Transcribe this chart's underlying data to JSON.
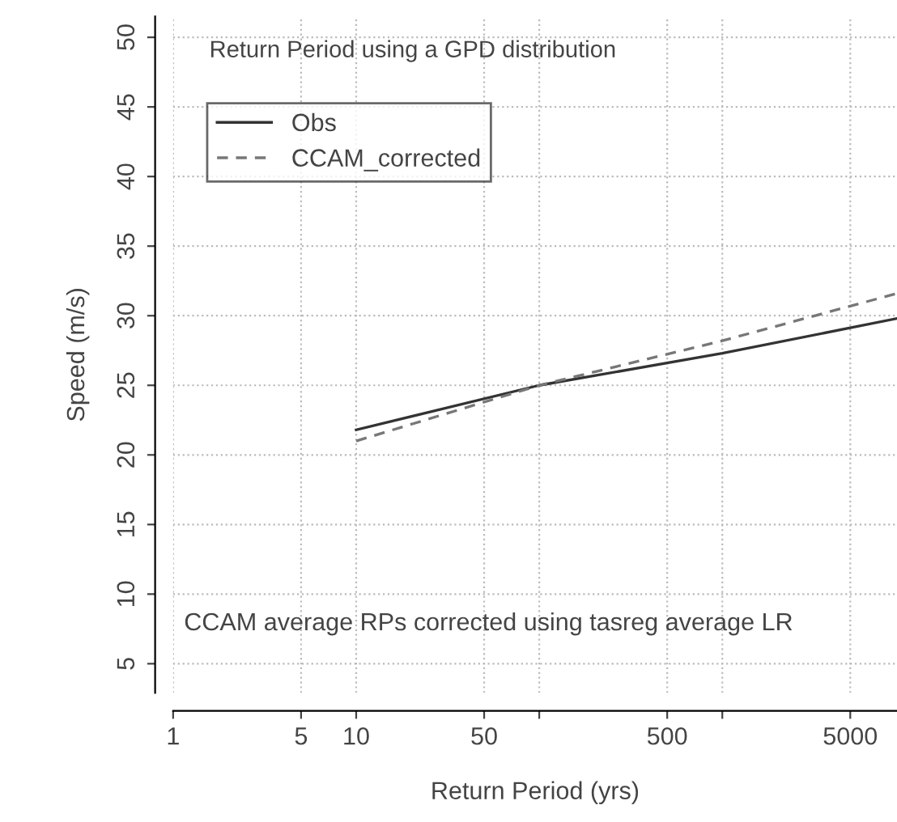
{
  "chart_data": {
    "type": "line",
    "xlabel": "Return Period (yrs)",
    "ylabel": "Speed (m/s)",
    "annotations": [
      "Return Period using a GPD distribution",
      "CCAM average RPs corrected using tasreg average LR"
    ],
    "log": "x",
    "xlim": [
      1,
      9000
    ],
    "ylim": [
      2.9,
      51.5
    ],
    "xticks": [
      1,
      5,
      10,
      50,
      {
        "value": 100,
        "label": null
      },
      500,
      {
        "value": 1000,
        "label": null
      },
      5000
    ],
    "yticks": [
      5,
      10,
      15,
      20,
      25,
      30,
      35,
      40,
      45,
      50
    ],
    "grid": true,
    "legend": "top left",
    "series": [
      {
        "name": "Obs",
        "color": "#333333",
        "line_style": "solid",
        "x": [
          10,
          100,
          1000,
          9000
        ],
        "values": [
          21.8,
          25.0,
          27.3,
          29.8
        ]
      },
      {
        "name": "CCAM_corrected",
        "color": "#777777",
        "line_style": "dashed",
        "x": [
          10,
          100,
          1000,
          9000
        ],
        "values": [
          21.0,
          25.0,
          28.2,
          31.6
        ]
      }
    ]
  }
}
